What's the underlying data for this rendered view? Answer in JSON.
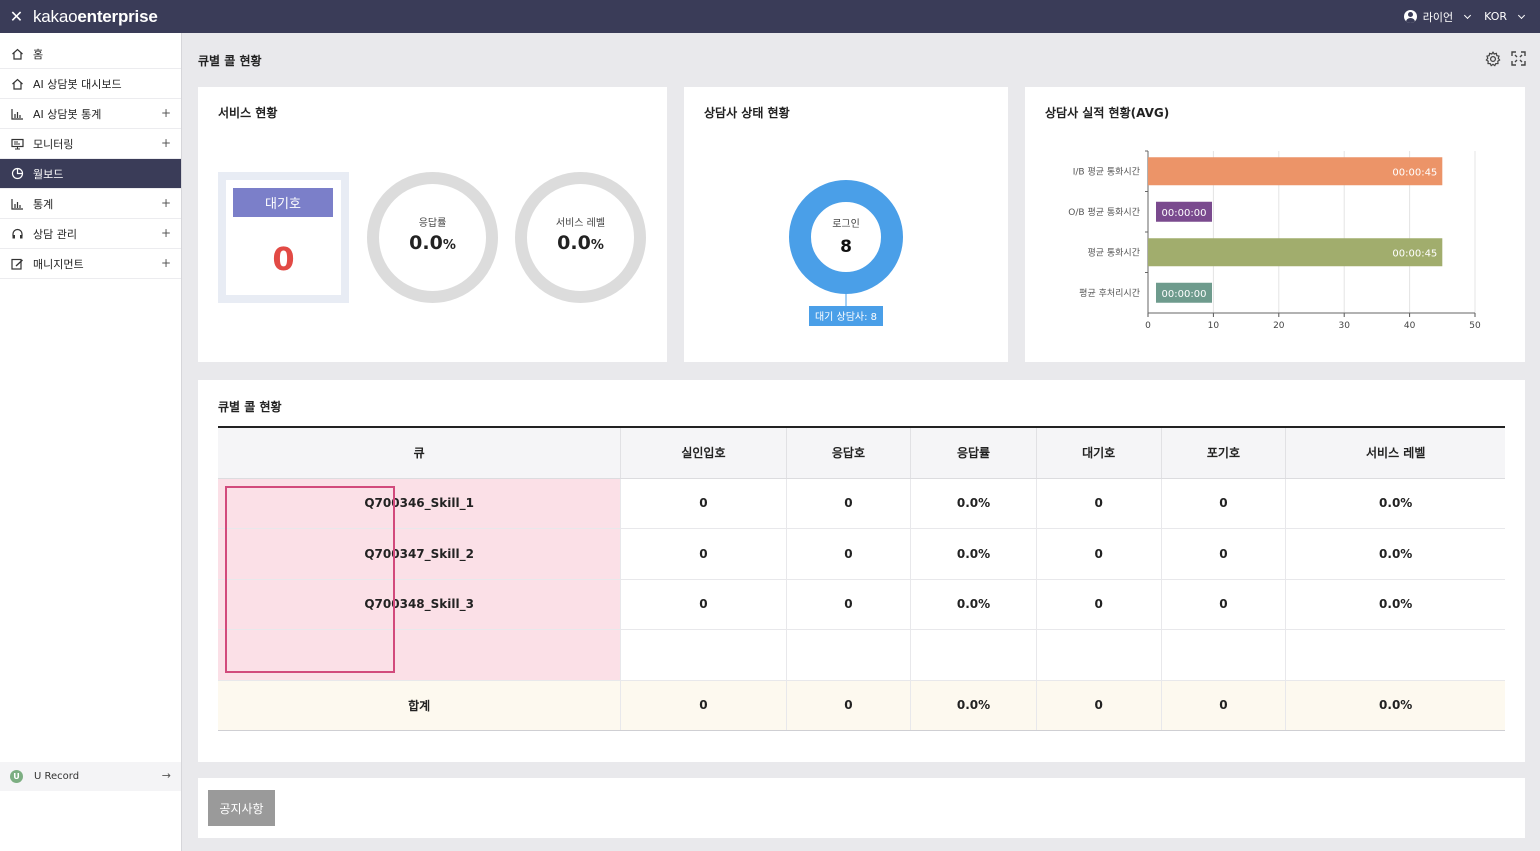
{
  "topbar": {
    "close_icon": "close-icon",
    "logo_light": "kakao",
    "logo_bold": "enterprise",
    "user_name": "라이언",
    "language": "KOR"
  },
  "sidebar": {
    "items": [
      {
        "label": "홈",
        "icon": "home-icon",
        "expandable": false
      },
      {
        "label": "AI 상담봇 대시보드",
        "icon": "home-icon",
        "expandable": false
      },
      {
        "label": "AI 상담봇 통계",
        "icon": "bar-chart-icon",
        "expandable": true
      },
      {
        "label": "모니터링",
        "icon": "monitor-icon",
        "expandable": true
      },
      {
        "label": "월보드",
        "icon": "pie-chart-icon",
        "expandable": false,
        "active": true
      },
      {
        "label": "통계",
        "icon": "bar-chart-icon",
        "expandable": true
      },
      {
        "label": "상담 관리",
        "icon": "headset-icon",
        "expandable": true
      },
      {
        "label": "매니지먼트",
        "icon": "edit-icon",
        "expandable": true
      }
    ],
    "expand_symbol": "+",
    "urecord": {
      "badge": "U",
      "label": "U Record",
      "arrow": "→"
    }
  },
  "page": {
    "title": "큐별 콜 현황"
  },
  "service_status": {
    "title": "서비스 현황",
    "waiting": {
      "label": "대기호",
      "value": "0"
    },
    "answer_rate": {
      "label": "응답률",
      "value": "0.0",
      "unit": "%"
    },
    "service_level": {
      "label": "서비스 레벨",
      "value": "0.0",
      "unit": "%"
    }
  },
  "agent_status": {
    "title": "상담사 상태 현황",
    "login_label": "로그인",
    "login_value": "8",
    "tooltip": "대기 상담사: 8"
  },
  "agent_performance": {
    "title": "상담사 실적 현황(AVG)",
    "chart_data": {
      "type": "bar",
      "orientation": "horizontal",
      "categories": [
        "I/B 평균 통화시간",
        "O/B 평균 통화시간",
        "평균 통화시간",
        "평균 후처리시간"
      ],
      "values": [
        45,
        0,
        45,
        0
      ],
      "value_labels": [
        "00:00:45",
        "00:00:00",
        "00:00:45",
        "00:00:00"
      ],
      "colors": [
        "#ec9468",
        "#7a4a8e",
        "#a1ad6d",
        "#6e9b8d"
      ],
      "xlim": [
        0,
        50
      ],
      "xticks": [
        "0",
        "10",
        "20",
        "30",
        "40",
        "50"
      ],
      "grid": true
    }
  },
  "queue_table": {
    "title": "큐별 콜 현황",
    "headers": [
      "큐",
      "실인입호",
      "응답호",
      "응답률",
      "대기호",
      "포기호",
      "서비스 레벨"
    ],
    "rows": [
      [
        "Q700346_Skill_1",
        "0",
        "0",
        "0.0%",
        "0",
        "0",
        "0.0%"
      ],
      [
        "Q700347_Skill_2",
        "0",
        "0",
        "0.0%",
        "0",
        "0",
        "0.0%"
      ],
      [
        "Q700348_Skill_3",
        "0",
        "0",
        "0.0%",
        "0",
        "0",
        "0.0%"
      ],
      [
        "",
        "",
        "",
        "",
        "",
        "",
        ""
      ]
    ],
    "total": [
      "합계",
      "0",
      "0",
      "0.0%",
      "0",
      "0",
      "0.0%"
    ]
  },
  "notice": {
    "button_label": "공지사항"
  }
}
